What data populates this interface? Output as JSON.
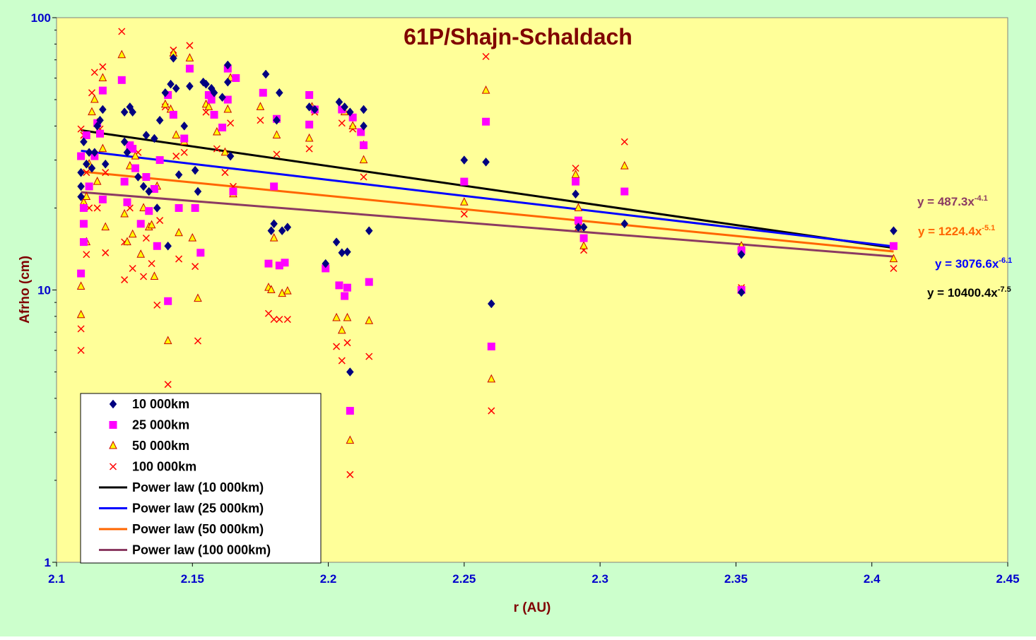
{
  "colors": {
    "page_bg": "#CCFFCC",
    "plot_bg": "#FFFF99",
    "title": "#800000",
    "axis_title": "#800000",
    "tick_label": "#0000CC",
    "legend_text": "#000000",
    "series_10000": "#000080",
    "series_25000": "#FF00FF",
    "series_50000_fill": "#FFFF00",
    "series_50000_edge": "#CC0000",
    "series_100000": "#FF0000",
    "fit_10000": "#000000",
    "fit_25000": "#0000FF",
    "fit_50000": "#FF6600",
    "fit_100000": "#8B3A62"
  },
  "chart_data": {
    "type": "scatter",
    "title": "61P/Shajn-Schaldach",
    "xlabel": "r (AU)",
    "ylabel": "Afrho (cm)",
    "xlim": [
      2.1,
      2.45
    ],
    "ylim": [
      1,
      100
    ],
    "y_scale": "log",
    "grid": false,
    "x_ticks": [
      "2.1",
      "2.15",
      "2.2",
      "2.25",
      "2.3",
      "2.35",
      "2.4",
      "2.45"
    ],
    "y_ticks": [
      "1",
      "10",
      "100"
    ],
    "legend_position": "bottom-left",
    "series": [
      {
        "name": "10 000km",
        "marker": "diamond",
        "points": [
          [
            2.109,
            27
          ],
          [
            2.109,
            24
          ],
          [
            2.109,
            22
          ],
          [
            2.11,
            35
          ],
          [
            2.111,
            29
          ],
          [
            2.112,
            32
          ],
          [
            2.113,
            28
          ],
          [
            2.114,
            32
          ],
          [
            2.115,
            40
          ],
          [
            2.116,
            42
          ],
          [
            2.117,
            46
          ],
          [
            2.118,
            29
          ],
          [
            2.125,
            45
          ],
          [
            2.125,
            35
          ],
          [
            2.126,
            32
          ],
          [
            2.127,
            47
          ],
          [
            2.128,
            45
          ],
          [
            2.13,
            26
          ],
          [
            2.132,
            24
          ],
          [
            2.133,
            37
          ],
          [
            2.134,
            23
          ],
          [
            2.136,
            36
          ],
          [
            2.137,
            20
          ],
          [
            2.138,
            42
          ],
          [
            2.14,
            53
          ],
          [
            2.141,
            14.5
          ],
          [
            2.142,
            57
          ],
          [
            2.143,
            71
          ],
          [
            2.144,
            55
          ],
          [
            2.145,
            26.5
          ],
          [
            2.147,
            40
          ],
          [
            2.149,
            56
          ],
          [
            2.151,
            27.5
          ],
          [
            2.152,
            23
          ],
          [
            2.154,
            58
          ],
          [
            2.155,
            57
          ],
          [
            2.157,
            55
          ],
          [
            2.158,
            53
          ],
          [
            2.161,
            51
          ],
          [
            2.163,
            67
          ],
          [
            2.163,
            58
          ],
          [
            2.164,
            31
          ],
          [
            2.177,
            62
          ],
          [
            2.179,
            16.5
          ],
          [
            2.18,
            17.5
          ],
          [
            2.181,
            42
          ],
          [
            2.182,
            53
          ],
          [
            2.183,
            16.5
          ],
          [
            2.185,
            17
          ],
          [
            2.193,
            47
          ],
          [
            2.195,
            46
          ],
          [
            2.199,
            12.5
          ],
          [
            2.203,
            15
          ],
          [
            2.204,
            49
          ],
          [
            2.205,
            13.7
          ],
          [
            2.206,
            47
          ],
          [
            2.207,
            13.8
          ],
          [
            2.208,
            45
          ],
          [
            2.208,
            5
          ],
          [
            2.213,
            46
          ],
          [
            2.213,
            40
          ],
          [
            2.215,
            16.5
          ],
          [
            2.25,
            30
          ],
          [
            2.258,
            29.5
          ],
          [
            2.26,
            8.9
          ],
          [
            2.291,
            22.5
          ],
          [
            2.292,
            17
          ],
          [
            2.294,
            17
          ],
          [
            2.309,
            17.5
          ],
          [
            2.352,
            13.5
          ],
          [
            2.352,
            9.8
          ],
          [
            2.408,
            16.5
          ]
        ]
      },
      {
        "name": "25 000km",
        "marker": "square",
        "points": [
          [
            2.109,
            31
          ],
          [
            2.109,
            11.5
          ],
          [
            2.11,
            20
          ],
          [
            2.11,
            17.5
          ],
          [
            2.11,
            15
          ],
          [
            2.111,
            37
          ],
          [
            2.112,
            24
          ],
          [
            2.114,
            31
          ],
          [
            2.115,
            41
          ],
          [
            2.116,
            37.5
          ],
          [
            2.117,
            54
          ],
          [
            2.117,
            21.5
          ],
          [
            2.124,
            59
          ],
          [
            2.125,
            25
          ],
          [
            2.126,
            21
          ],
          [
            2.127,
            34
          ],
          [
            2.128,
            33
          ],
          [
            2.129,
            28
          ],
          [
            2.131,
            17.5
          ],
          [
            2.133,
            26
          ],
          [
            2.134,
            19.5
          ],
          [
            2.136,
            23.5
          ],
          [
            2.137,
            14.5
          ],
          [
            2.138,
            30
          ],
          [
            2.141,
            9.1
          ],
          [
            2.141,
            52
          ],
          [
            2.143,
            44
          ],
          [
            2.145,
            20
          ],
          [
            2.147,
            36
          ],
          [
            2.149,
            65
          ],
          [
            2.151,
            20
          ],
          [
            2.153,
            13.7
          ],
          [
            2.156,
            52
          ],
          [
            2.157,
            50
          ],
          [
            2.158,
            44
          ],
          [
            2.161,
            39.5
          ],
          [
            2.163,
            50
          ],
          [
            2.163,
            65
          ],
          [
            2.165,
            23
          ],
          [
            2.166,
            60
          ],
          [
            2.176,
            53
          ],
          [
            2.178,
            12.5
          ],
          [
            2.18,
            24
          ],
          [
            2.181,
            42.5
          ],
          [
            2.182,
            12.3
          ],
          [
            2.184,
            12.6
          ],
          [
            2.193,
            52
          ],
          [
            2.193,
            40.5
          ],
          [
            2.195,
            46
          ],
          [
            2.199,
            12
          ],
          [
            2.204,
            10.4
          ],
          [
            2.205,
            46
          ],
          [
            2.206,
            9.5
          ],
          [
            2.207,
            10.2
          ],
          [
            2.208,
            3.6
          ],
          [
            2.209,
            43
          ],
          [
            2.212,
            38
          ],
          [
            2.213,
            34
          ],
          [
            2.215,
            10.7
          ],
          [
            2.25,
            25
          ],
          [
            2.258,
            41.5
          ],
          [
            2.26,
            6.2
          ],
          [
            2.291,
            25
          ],
          [
            2.292,
            18
          ],
          [
            2.294,
            15.5
          ],
          [
            2.309,
            23
          ],
          [
            2.352,
            14
          ],
          [
            2.352,
            10
          ],
          [
            2.408,
            14.5
          ]
        ]
      },
      {
        "name": "50 000km",
        "marker": "triangle",
        "points": [
          [
            2.109,
            8.1
          ],
          [
            2.109,
            10.3
          ],
          [
            2.11,
            21
          ],
          [
            2.11,
            20
          ],
          [
            2.111,
            15
          ],
          [
            2.111,
            22
          ],
          [
            2.112,
            29
          ],
          [
            2.113,
            45
          ],
          [
            2.114,
            50
          ],
          [
            2.115,
            41
          ],
          [
            2.115,
            25
          ],
          [
            2.117,
            60
          ],
          [
            2.117,
            33
          ],
          [
            2.118,
            17
          ],
          [
            2.124,
            73
          ],
          [
            2.125,
            19
          ],
          [
            2.126,
            15
          ],
          [
            2.127,
            28.5
          ],
          [
            2.128,
            16
          ],
          [
            2.129,
            31
          ],
          [
            2.131,
            13.5
          ],
          [
            2.132,
            20
          ],
          [
            2.134,
            17
          ],
          [
            2.135,
            17.3
          ],
          [
            2.136,
            11.2
          ],
          [
            2.137,
            24
          ],
          [
            2.14,
            48
          ],
          [
            2.141,
            6.5
          ],
          [
            2.142,
            46
          ],
          [
            2.143,
            74
          ],
          [
            2.144,
            37
          ],
          [
            2.145,
            16.2
          ],
          [
            2.147,
            35
          ],
          [
            2.149,
            71
          ],
          [
            2.15,
            15.5
          ],
          [
            2.152,
            9.3
          ],
          [
            2.155,
            48
          ],
          [
            2.156,
            47
          ],
          [
            2.159,
            38
          ],
          [
            2.162,
            32
          ],
          [
            2.163,
            46
          ],
          [
            2.164,
            60
          ],
          [
            2.165,
            22.5
          ],
          [
            2.175,
            47
          ],
          [
            2.178,
            10.2
          ],
          [
            2.179,
            10
          ],
          [
            2.18,
            15.5
          ],
          [
            2.181,
            37
          ],
          [
            2.183,
            9.7
          ],
          [
            2.185,
            9.9
          ],
          [
            2.193,
            36
          ],
          [
            2.194,
            47
          ],
          [
            2.203,
            7.9
          ],
          [
            2.205,
            7.1
          ],
          [
            2.206,
            45
          ],
          [
            2.207,
            7.9
          ],
          [
            2.208,
            2.8
          ],
          [
            2.209,
            40
          ],
          [
            2.213,
            34
          ],
          [
            2.213,
            30
          ],
          [
            2.215,
            7.7
          ],
          [
            2.25,
            21
          ],
          [
            2.258,
            54
          ],
          [
            2.26,
            4.7
          ],
          [
            2.291,
            26.5
          ],
          [
            2.292,
            20
          ],
          [
            2.294,
            14.5
          ],
          [
            2.309,
            28.5
          ],
          [
            2.352,
            14.5
          ],
          [
            2.352,
            10
          ],
          [
            2.408,
            13
          ]
        ]
      },
      {
        "name": "100 000km",
        "marker": "x",
        "points": [
          [
            2.109,
            39
          ],
          [
            2.109,
            7.2
          ],
          [
            2.109,
            6
          ],
          [
            2.11,
            37
          ],
          [
            2.111,
            27
          ],
          [
            2.111,
            13.5
          ],
          [
            2.112,
            20
          ],
          [
            2.113,
            53
          ],
          [
            2.114,
            63
          ],
          [
            2.115,
            20
          ],
          [
            2.116,
            39
          ],
          [
            2.117,
            66
          ],
          [
            2.118,
            27
          ],
          [
            2.118,
            13.7
          ],
          [
            2.124,
            89
          ],
          [
            2.125,
            15
          ],
          [
            2.125,
            10.9
          ],
          [
            2.127,
            20
          ],
          [
            2.128,
            12
          ],
          [
            2.13,
            32
          ],
          [
            2.132,
            11.2
          ],
          [
            2.133,
            15.5
          ],
          [
            2.135,
            12.5
          ],
          [
            2.137,
            8.8
          ],
          [
            2.138,
            18
          ],
          [
            2.14,
            47
          ],
          [
            2.141,
            4.5
          ],
          [
            2.143,
            76
          ],
          [
            2.144,
            31
          ],
          [
            2.145,
            13
          ],
          [
            2.147,
            32
          ],
          [
            2.149,
            79
          ],
          [
            2.151,
            12.2
          ],
          [
            2.152,
            6.5
          ],
          [
            2.155,
            45
          ],
          [
            2.159,
            33
          ],
          [
            2.162,
            27
          ],
          [
            2.164,
            41
          ],
          [
            2.165,
            24
          ],
          [
            2.175,
            42
          ],
          [
            2.178,
            8.2
          ],
          [
            2.18,
            7.8
          ],
          [
            2.181,
            31.5
          ],
          [
            2.182,
            7.8
          ],
          [
            2.185,
            7.8
          ],
          [
            2.193,
            33
          ],
          [
            2.195,
            45
          ],
          [
            2.199,
            12
          ],
          [
            2.203,
            6.2
          ],
          [
            2.205,
            5.5
          ],
          [
            2.205,
            41
          ],
          [
            2.207,
            6.4
          ],
          [
            2.208,
            2.1
          ],
          [
            2.209,
            39
          ],
          [
            2.213,
            26
          ],
          [
            2.215,
            5.7
          ],
          [
            2.25,
            19
          ],
          [
            2.258,
            72
          ],
          [
            2.26,
            3.6
          ],
          [
            2.291,
            28
          ],
          [
            2.292,
            17
          ],
          [
            2.294,
            14
          ],
          [
            2.309,
            35
          ],
          [
            2.352,
            14
          ],
          [
            2.352,
            10.2
          ],
          [
            2.408,
            12
          ]
        ]
      }
    ],
    "fits": [
      {
        "name": "Power law (10 000km)",
        "equation": "y = 10400.4x",
        "exponent": "-7.5",
        "a": 10400.4,
        "b": -7.5
      },
      {
        "name": "Power law (25 000km)",
        "equation": "y = 3076.6x",
        "exponent": "-6.1",
        "a": 3076.6,
        "b": -6.1
      },
      {
        "name": "Power law (50 000km)",
        "equation": "y = 1224.4x",
        "exponent": "-5.1",
        "a": 1224.4,
        "b": -5.1
      },
      {
        "name": "Power law (100 000km)",
        "equation": "y = 487.3x",
        "exponent": "-4.1",
        "a": 487.3,
        "b": -4.1
      }
    ],
    "fit_x_range": [
      2.109,
      2.408
    ]
  }
}
